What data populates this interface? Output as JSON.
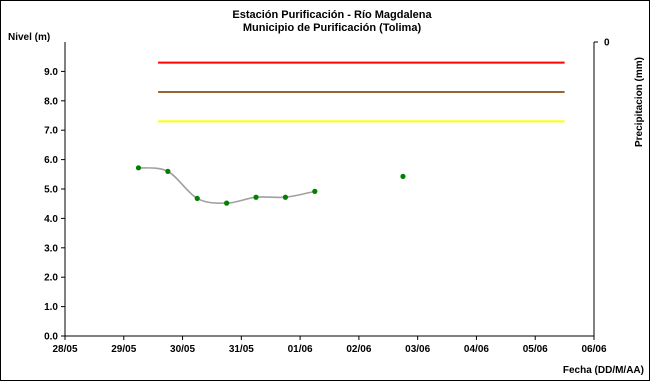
{
  "chart_data": {
    "type": "line",
    "title": "Estación Purificación - Río Magdalena",
    "subtitle": "Municipio de Purificación (Tolima)",
    "ylabel": "Nivel (m)",
    "y2label": "Precipitacion (mm)",
    "xlabel": "Fecha (DD/M/AA)",
    "ylim": [
      0,
      10
    ],
    "yticks": [
      "0.0",
      "1.0",
      "2.0",
      "3.0",
      "4.0",
      "5.0",
      "6.0",
      "7.0",
      "8.0",
      "9.0"
    ],
    "y2ticks": [
      "0"
    ],
    "xlim": [
      "28/05",
      "06/06"
    ],
    "xticks": [
      "28/05",
      "29/05",
      "30/05",
      "31/05",
      "01/06",
      "02/06",
      "03/06",
      "04/06",
      "05/06",
      "06/06"
    ],
    "grid": false,
    "thresholds": [
      {
        "value": 9.3,
        "color": "#ff0000",
        "from": "29/05 14:00",
        "to": "05/06 12:00"
      },
      {
        "value": 8.3,
        "color": "#996633",
        "from": "29/05 14:00",
        "to": "05/06 12:00"
      },
      {
        "value": 7.3,
        "color": "#ffff00",
        "from": "29/05 14:00",
        "to": "05/06 12:00"
      }
    ],
    "series": [
      {
        "color": "#008000",
        "trend_color": "#a0a0a0",
        "points": [
          {
            "x": "29/05 06:00",
            "y": 5.72
          },
          {
            "x": "29/05 18:00",
            "y": 5.6
          },
          {
            "x": "30/05 06:00",
            "y": 4.68
          },
          {
            "x": "30/05 18:00",
            "y": 4.52
          },
          {
            "x": "31/05 06:00",
            "y": 4.72
          },
          {
            "x": "31/05 18:00",
            "y": 4.72
          },
          {
            "x": "01/06 06:00",
            "y": 4.92
          },
          {
            "x": "02/06 18:00",
            "y": 5.43
          }
        ],
        "trend_points": 7
      }
    ]
  }
}
